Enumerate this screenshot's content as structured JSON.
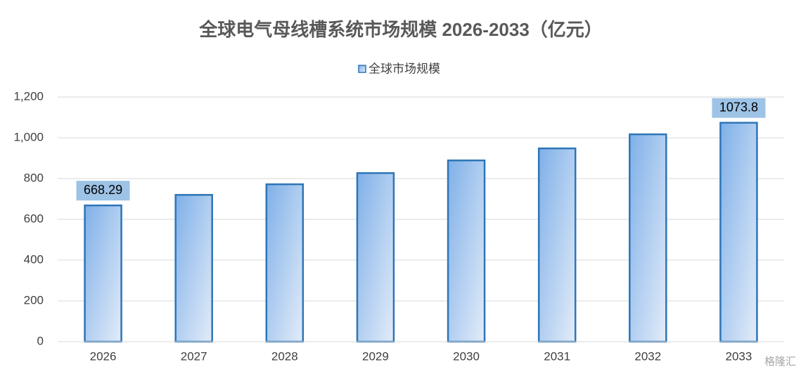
{
  "chart_data": {
    "type": "bar",
    "title": "全球电气母线槽系统市场规模 2026-2033（亿元）",
    "categories": [
      "2026",
      "2027",
      "2028",
      "2029",
      "2030",
      "2031",
      "2032",
      "2033"
    ],
    "series": [
      {
        "name": "全球市场规模",
        "color": "#2e75b6",
        "values": [
          668.29,
          720,
          772,
          827,
          889,
          948,
          1017,
          1073.8
        ],
        "value_labels": [
          "668.29",
          null,
          null,
          null,
          null,
          null,
          null,
          "1073.8"
        ]
      }
    ],
    "ylim": [
      0,
      1200
    ],
    "yticks": [
      0,
      200,
      400,
      600,
      800,
      {
        "value": 1000,
        "label": "1,000"
      },
      {
        "value": 1200,
        "label": "1,200"
      }
    ],
    "grid": true,
    "legend": "top",
    "watermark": "格隆汇"
  }
}
